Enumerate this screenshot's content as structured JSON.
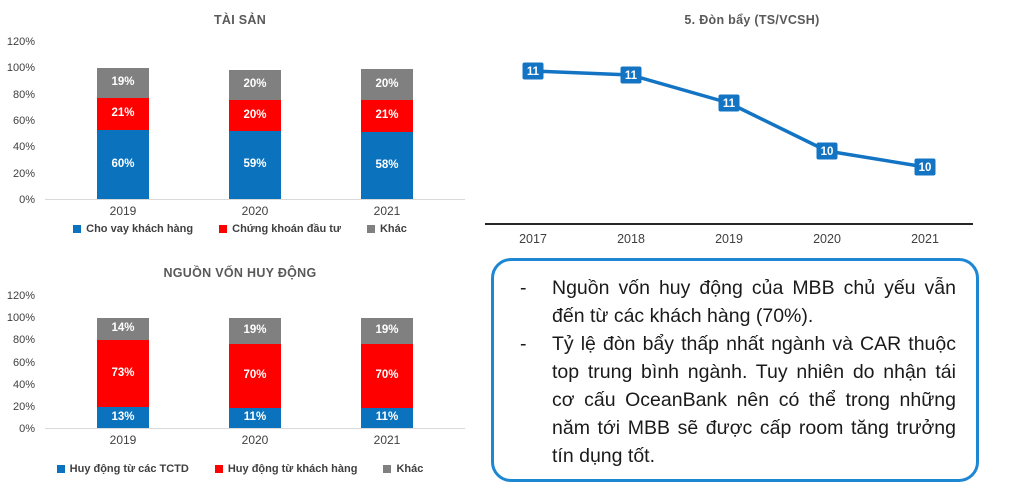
{
  "colors": {
    "bar_blue": "#0b72be",
    "bar_red": "#fe0000",
    "bar_gray": "#808080",
    "line_blue": "#1474c4",
    "note_border": "#1d87d3",
    "title_text": "#595959",
    "axis_text": "#404040",
    "axis_line_light": "#d9d9d9",
    "axis_line_dark": "#262626",
    "label_on_bar": "#ffffff"
  },
  "chart_data": [
    {
      "type": "bar",
      "stacked": true,
      "title": "TÀI SẢN",
      "categories": [
        "2019",
        "2020",
        "2021"
      ],
      "series": [
        {
          "name": "Cho vay khách hàng",
          "color_key": "bar_blue",
          "values": [
            60,
            59,
            58
          ]
        },
        {
          "name": "Chứng khoán đầu tư",
          "color_key": "bar_red",
          "values": [
            21,
            20,
            21
          ]
        },
        {
          "name": "Khác",
          "color_key": "bar_gray",
          "values": [
            19,
            20,
            20
          ]
        }
      ],
      "xlabel": "",
      "ylabel": "",
      "ylim": [
        0,
        120
      ],
      "ytick_step": 20,
      "ytick_suffix": "%",
      "value_suffix": "%",
      "grid": false,
      "legend_position": "bottom"
    },
    {
      "type": "bar",
      "stacked": true,
      "title": "NGUỒN VỐN HUY ĐỘNG",
      "categories": [
        "2019",
        "2020",
        "2021"
      ],
      "series": [
        {
          "name": "Huy động từ các TCTD",
          "color_key": "bar_blue",
          "values": [
            13,
            11,
            11
          ]
        },
        {
          "name": "Huy động từ khách hàng",
          "color_key": "bar_red",
          "values": [
            73,
            70,
            70
          ]
        },
        {
          "name": "Khác",
          "color_key": "bar_gray",
          "values": [
            14,
            19,
            19
          ]
        }
      ],
      "xlabel": "",
      "ylabel": "",
      "ylim": [
        0,
        120
      ],
      "ytick_step": 20,
      "ytick_suffix": "%",
      "value_suffix": "%",
      "grid": false,
      "legend_position": "bottom"
    },
    {
      "type": "line",
      "title": "5. Đòn bẩy (TS/VCSH)",
      "x": [
        "2017",
        "2018",
        "2019",
        "2020",
        "2021"
      ],
      "values": [
        11,
        11,
        11,
        10,
        10
      ],
      "trend_y_estimates": [
        11.0,
        10.95,
        10.6,
        10.0,
        9.8
      ],
      "data_labels": true,
      "marker": "square",
      "grid": false,
      "legend_position": "none"
    }
  ],
  "note": {
    "bullet_marker": "-",
    "bullets": [
      "Nguồn vốn huy động của MBB chủ yếu vẫn đến từ các khách hàng (70%).",
      "Tỷ lệ đòn bẩy thấp nhất ngành và CAR thuộc top trung bình ngành. Tuy nhiên do nhận tái cơ cấu OceanBank nên có thể trong những năm tới MBB sẽ được cấp room tăng trưởng tín dụng tốt."
    ]
  }
}
